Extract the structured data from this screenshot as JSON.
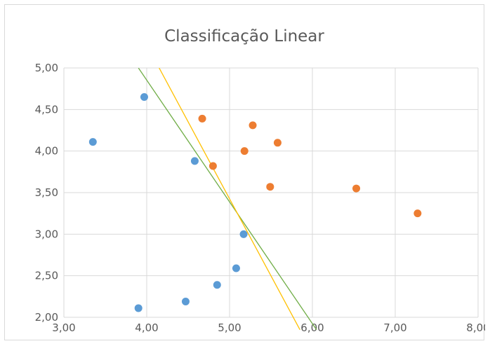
{
  "chart_data": {
    "type": "scatter",
    "title": "Classificação Linear",
    "xlim": [
      3.0,
      8.0
    ],
    "ylim": [
      2.0,
      5.0
    ],
    "x_ticks": [
      3,
      4,
      5,
      6,
      7,
      8
    ],
    "y_ticks": [
      2.0,
      2.5,
      3.0,
      3.5,
      4.0,
      4.5,
      5.0
    ],
    "x_tick_labels": [
      "3,00",
      "4,00",
      "5,00",
      "6,00",
      "7,00",
      "8,00"
    ],
    "y_tick_labels": [
      "2,00",
      "2,50",
      "3,00",
      "3,50",
      "4,00",
      "4,50",
      "5,00"
    ],
    "grid": true,
    "legend": "none",
    "series": [
      {
        "color": "#5b9bd5",
        "points": [
          [
            3.35,
            4.11
          ],
          [
            3.97,
            4.65
          ],
          [
            4.58,
            3.88
          ],
          [
            5.17,
            3.0
          ],
          [
            5.08,
            2.59
          ],
          [
            4.85,
            2.39
          ],
          [
            4.47,
            2.19
          ],
          [
            3.9,
            2.11
          ]
        ]
      },
      {
        "color": "#ed7d31",
        "points": [
          [
            4.67,
            4.39
          ],
          [
            5.28,
            4.31
          ],
          [
            5.58,
            4.1
          ],
          [
            5.18,
            4.0
          ],
          [
            4.8,
            3.82
          ],
          [
            5.49,
            3.57
          ],
          [
            6.53,
            3.55
          ],
          [
            7.27,
            3.25
          ]
        ]
      }
    ],
    "lines": [
      {
        "color": "#70ad47",
        "from": [
          3.9,
          5.0
        ],
        "to": [
          6.05,
          1.85
        ]
      },
      {
        "color": "#ffc000",
        "from": [
          4.15,
          5.0
        ],
        "to": [
          5.85,
          1.85
        ]
      }
    ]
  }
}
